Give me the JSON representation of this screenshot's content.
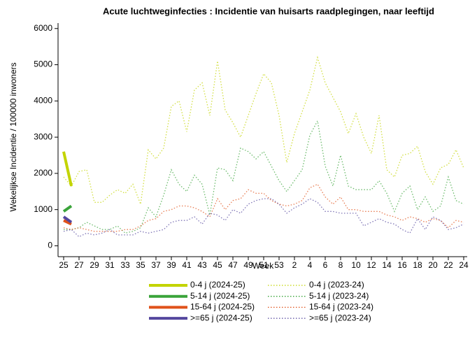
{
  "chart_data": {
    "type": "line",
    "title": "Acute luchtweginfecties : Incidentie van huisarts raadplegingen, naar leeftijd",
    "x_label": "Week",
    "y_label": "Wekelijkse Incidentie / 100000 inwoners",
    "categories": [
      25,
      null,
      27,
      null,
      29,
      null,
      31,
      null,
      33,
      null,
      35,
      null,
      37,
      null,
      39,
      null,
      41,
      null,
      43,
      null,
      45,
      null,
      47,
      null,
      49,
      null,
      51,
      null,
      53,
      null,
      2,
      null,
      4,
      null,
      6,
      null,
      8,
      null,
      10,
      null,
      12,
      null,
      14,
      null,
      16,
      null,
      18,
      null,
      20,
      null,
      22,
      null,
      24
    ],
    "ylim": [
      -300,
      6150
    ],
    "yticks": [
      0,
      1000,
      2000,
      3000,
      4000,
      5000,
      6000
    ],
    "series": [
      {
        "name": "0-4 j (2024-25)",
        "color": "#c3d400",
        "dash": "solid",
        "values": [
          2600,
          1650,
          null,
          null,
          null,
          null,
          null,
          null,
          null,
          null,
          null,
          null,
          null,
          null,
          null,
          null,
          null,
          null,
          null,
          null,
          null,
          null,
          null,
          null,
          null,
          null,
          null,
          null,
          null,
          null,
          null,
          null,
          null,
          null,
          null,
          null,
          null,
          null,
          null,
          null,
          null,
          null,
          null,
          null,
          null,
          null,
          null,
          null,
          null,
          null,
          null,
          null,
          null
        ]
      },
      {
        "name": "0-4 j (2023-24)",
        "color": "#c3d400",
        "dash": "dotted",
        "values": [
          1900,
          1650,
          2050,
          2100,
          1200,
          1200,
          1400,
          1550,
          1450,
          1700,
          1150,
          2650,
          2400,
          2700,
          3850,
          4000,
          3150,
          4300,
          4500,
          3600,
          5100,
          3750,
          3400,
          3000,
          3600,
          4200,
          4750,
          4500,
          3600,
          2300,
          3100,
          3700,
          4300,
          5200,
          4500,
          4100,
          3700,
          3100,
          3650,
          3000,
          2550,
          3600,
          2100,
          1900,
          2500,
          2550,
          2750,
          2050,
          1700,
          2150,
          2250,
          2650,
          2150
        ]
      },
      {
        "name": "5-14 j (2024-25)",
        "color": "#3aa43a",
        "dash": "solid",
        "values": [
          950,
          1100,
          null,
          null,
          null,
          null,
          null,
          null,
          null,
          null,
          null,
          null,
          null,
          null,
          null,
          null,
          null,
          null,
          null,
          null,
          null,
          null,
          null,
          null,
          null,
          null,
          null,
          null,
          null,
          null,
          null,
          null,
          null,
          null,
          null,
          null,
          null,
          null,
          null,
          null,
          null,
          null,
          null,
          null,
          null,
          null,
          null,
          null,
          null,
          null,
          null,
          null,
          null
        ]
      },
      {
        "name": "5-14 j (2023-24)",
        "color": "#3aa43a",
        "dash": "dotted",
        "values": [
          450,
          450,
          500,
          650,
          550,
          450,
          450,
          550,
          350,
          400,
          500,
          1050,
          800,
          1400,
          2100,
          1700,
          1500,
          1950,
          1700,
          850,
          2150,
          2100,
          1800,
          2700,
          2600,
          2400,
          2600,
          2200,
          1800,
          1500,
          1800,
          2100,
          3050,
          3450,
          2200,
          1650,
          2500,
          1650,
          1550,
          1550,
          1550,
          1800,
          1450,
          950,
          1450,
          1650,
          1000,
          1350,
          950,
          1100,
          1900,
          1250,
          1150
        ]
      },
      {
        "name": "15-64 j (2024-25)",
        "color": "#e0521a",
        "dash": "solid",
        "values": [
          700,
          600,
          null,
          null,
          null,
          null,
          null,
          null,
          null,
          null,
          null,
          null,
          null,
          null,
          null,
          null,
          null,
          null,
          null,
          null,
          null,
          null,
          null,
          null,
          null,
          null,
          null,
          null,
          null,
          null,
          null,
          null,
          null,
          null,
          null,
          null,
          null,
          null,
          null,
          null,
          null,
          null,
          null,
          null,
          null,
          null,
          null,
          null,
          null,
          null,
          null,
          null,
          null
        ]
      },
      {
        "name": "15-64 j (2023-24)",
        "color": "#e0521a",
        "dash": "dotted",
        "values": [
          500,
          450,
          500,
          450,
          400,
          400,
          400,
          400,
          450,
          450,
          550,
          700,
          750,
          950,
          1000,
          1100,
          1100,
          1050,
          950,
          800,
          1300,
          1000,
          1250,
          1300,
          1550,
          1450,
          1450,
          1250,
          1150,
          1100,
          1150,
          1250,
          1600,
          1700,
          1350,
          1150,
          1350,
          1000,
          1000,
          950,
          950,
          950,
          850,
          800,
          700,
          800,
          750,
          650,
          750,
          700,
          500,
          700,
          650
        ]
      },
      {
        "name": ">=65 j (2024-25)",
        "color": "#54479e",
        "dash": "solid",
        "values": [
          800,
          650,
          null,
          null,
          null,
          null,
          null,
          null,
          null,
          null,
          null,
          null,
          null,
          null,
          null,
          null,
          null,
          null,
          null,
          null,
          null,
          null,
          null,
          null,
          null,
          null,
          null,
          null,
          null,
          null,
          null,
          null,
          null,
          null,
          null,
          null,
          null,
          null,
          null,
          null,
          null,
          null,
          null,
          null,
          null,
          null,
          null,
          null,
          null,
          null,
          null,
          null,
          null
        ]
      },
      {
        "name": ">=65 j (2023-24)",
        "color": "#54479e",
        "dash": "dotted",
        "values": [
          400,
          450,
          250,
          350,
          300,
          350,
          450,
          300,
          300,
          300,
          400,
          350,
          400,
          450,
          650,
          700,
          700,
          800,
          600,
          900,
          850,
          700,
          1000,
          900,
          1150,
          1250,
          1300,
          1300,
          1150,
          900,
          1050,
          1150,
          1300,
          1200,
          950,
          950,
          900,
          900,
          900,
          550,
          650,
          750,
          650,
          600,
          450,
          350,
          750,
          450,
          800,
          700,
          450,
          500,
          600
        ]
      }
    ]
  }
}
